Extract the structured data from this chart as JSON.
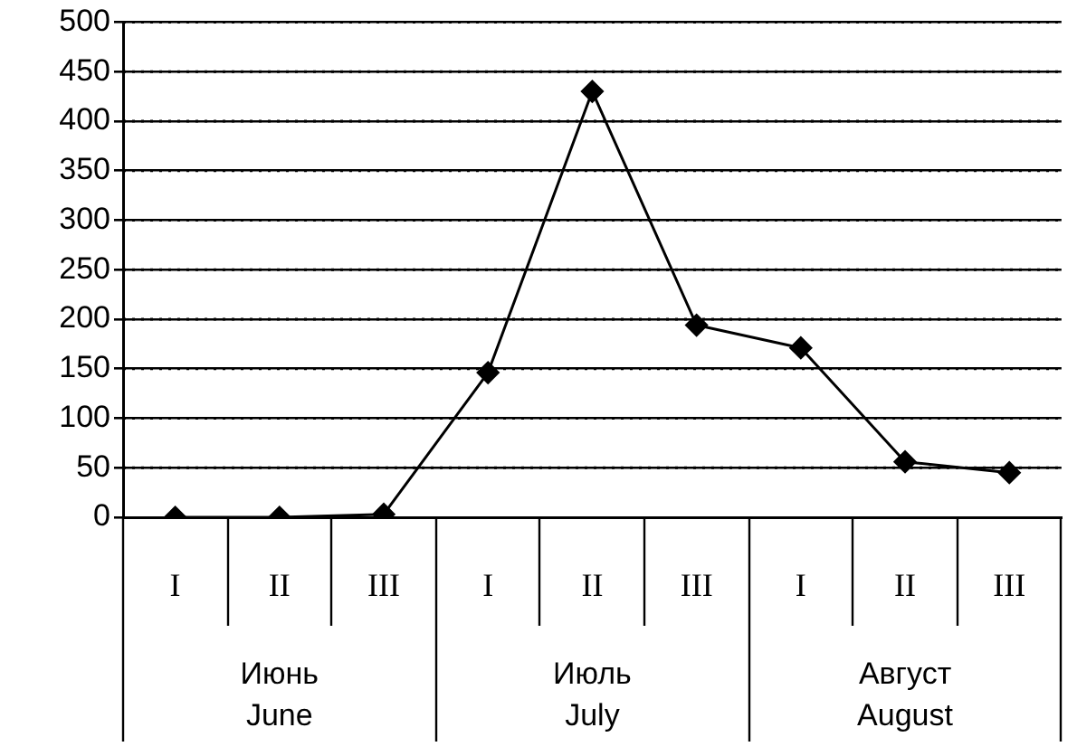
{
  "chart_data": {
    "type": "line",
    "categories": [
      "I",
      "II",
      "III",
      "I",
      "II",
      "III",
      "I",
      "II",
      "III"
    ],
    "series": [
      {
        "color": "#000000",
        "values": [
          0,
          0,
          3,
          146,
          430,
          194,
          171,
          56,
          45
        ]
      }
    ],
    "ylim": [
      0,
      500
    ],
    "yticks": [
      0,
      50,
      100,
      150,
      200,
      250,
      300,
      350,
      400,
      450,
      500
    ],
    "grid": "y",
    "marker": "diamond",
    "line_style": "solid",
    "legend": false,
    "annotations": [
      "Июнь\nJune",
      "Июль\nJuly",
      "Август\nAugust"
    ]
  }
}
